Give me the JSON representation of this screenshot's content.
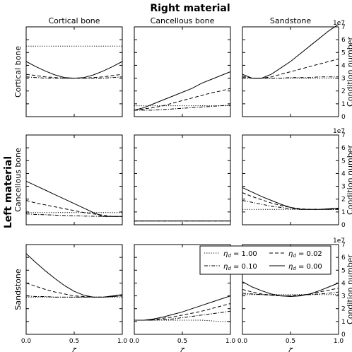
{
  "figure": {
    "suptitle": "Right material",
    "row_group_label": "Left material",
    "col_titles": [
      "Cortical bone",
      "Cancellous bone",
      "Sandstone"
    ],
    "row_titles": [
      "Cortical bone",
      "Cancellous bone",
      "Sandstone"
    ],
    "y_right_label": "Condition number",
    "y_offset_label": "1e7",
    "x_symbol": "ζ"
  },
  "legend": {
    "placement": "inside bottom row, spanning center and right panels",
    "entries": [
      {
        "symbol": "η",
        "sub": "d",
        "value": " = 1.00",
        "dash": "dotted"
      },
      {
        "symbol": "η",
        "sub": "d",
        "value": " = 0.02",
        "dash": "dashed"
      },
      {
        "symbol": "η",
        "sub": "d",
        "value": " = 0.10",
        "dash": "dashdot"
      },
      {
        "symbol": "η",
        "sub": "d",
        "value": " = 0.00",
        "dash": "solid"
      }
    ]
  },
  "chart_data": {
    "type": "line",
    "xlim": [
      0,
      1
    ],
    "ylim": [
      0,
      7
    ],
    "y_scale_note": "values in units of 1e7",
    "x_tick_labels": [
      "0.0",
      "0.5",
      "1.0"
    ],
    "y_tick_labels": [
      "0",
      "1",
      "2",
      "3",
      "4",
      "5",
      "6",
      "7"
    ],
    "x": [
      0.0,
      0.1,
      0.2,
      0.3,
      0.4,
      0.5,
      0.6,
      0.7,
      0.8,
      0.9,
      1.0
    ],
    "panels": [
      {
        "row": "Cortical bone",
        "col": "Cortical bone",
        "series": [
          {
            "eta": "1.00",
            "values": [
              5.5,
              5.5,
              5.5,
              5.5,
              5.5,
              5.5,
              5.5,
              5.5,
              5.5,
              5.5,
              5.5
            ]
          },
          {
            "eta": "0.02",
            "values": [
              3.3,
              3.2,
              3.1,
              3.05,
              3.0,
              3.0,
              3.0,
              3.05,
              3.1,
              3.2,
              3.3
            ]
          },
          {
            "eta": "0.10",
            "values": [
              3.1,
              3.05,
              3.0,
              3.0,
              3.0,
              3.0,
              3.0,
              3.0,
              3.0,
              3.05,
              3.1
            ]
          },
          {
            "eta": "0.00",
            "values": [
              4.3,
              3.9,
              3.55,
              3.25,
              3.05,
              3.0,
              3.05,
              3.25,
              3.55,
              3.9,
              4.3
            ]
          }
        ]
      },
      {
        "row": "Cortical bone",
        "col": "Cancellous bone",
        "series": [
          {
            "eta": "1.00",
            "values": [
              0.85,
              0.85,
              0.85,
              0.85,
              0.85,
              0.85,
              0.85,
              0.85,
              0.85,
              0.85,
              0.85
            ]
          },
          {
            "eta": "0.02",
            "values": [
              0.5,
              0.6,
              0.7,
              0.85,
              1.05,
              1.25,
              1.45,
              1.65,
              1.85,
              2.0,
              2.2
            ]
          },
          {
            "eta": "0.10",
            "values": [
              0.5,
              0.5,
              0.5,
              0.55,
              0.6,
              0.65,
              0.7,
              0.75,
              0.8,
              0.85,
              0.9
            ]
          },
          {
            "eta": "0.00",
            "values": [
              0.5,
              0.7,
              1.0,
              1.3,
              1.6,
              1.9,
              2.2,
              2.6,
              2.9,
              3.2,
              3.5
            ]
          }
        ]
      },
      {
        "row": "Cortical bone",
        "col": "Sandstone",
        "series": [
          {
            "eta": "1.00",
            "values": [
              3.0,
              3.0,
              3.0,
              3.0,
              3.0,
              3.0,
              3.0,
              3.0,
              3.0,
              3.0,
              3.0
            ]
          },
          {
            "eta": "0.02",
            "values": [
              3.15,
              3.0,
              3.0,
              3.1,
              3.3,
              3.5,
              3.7,
              3.9,
              4.1,
              4.3,
              4.5
            ]
          },
          {
            "eta": "0.10",
            "values": [
              3.05,
              3.0,
              3.0,
              3.0,
              3.0,
              3.05,
              3.05,
              3.05,
              3.1,
              3.1,
              3.1
            ]
          },
          {
            "eta": "0.00",
            "values": [
              3.3,
              3.0,
              3.0,
              3.3,
              3.8,
              4.3,
              4.9,
              5.5,
              6.1,
              6.7,
              7.2
            ]
          }
        ]
      },
      {
        "row": "Cancellous bone",
        "col": "Cortical bone",
        "series": [
          {
            "eta": "1.00",
            "values": [
              0.95,
              0.95,
              0.95,
              0.95,
              0.95,
              0.95,
              0.95,
              0.95,
              0.95,
              0.95,
              0.95
            ]
          },
          {
            "eta": "0.02",
            "values": [
              1.9,
              1.7,
              1.55,
              1.4,
              1.25,
              1.1,
              0.95,
              0.85,
              0.75,
              0.65,
              0.65
            ]
          },
          {
            "eta": "0.10",
            "values": [
              0.85,
              0.8,
              0.78,
              0.75,
              0.72,
              0.7,
              0.68,
              0.66,
              0.65,
              0.65,
              0.65
            ]
          },
          {
            "eta": "0.00",
            "values": [
              3.4,
              3.05,
              2.7,
              2.35,
              2.0,
              1.65,
              1.3,
              0.95,
              0.65,
              0.65,
              0.65
            ]
          }
        ]
      },
      {
        "row": "Cancellous bone",
        "col": "Cancellous bone",
        "series": [
          {
            "eta": "1.00",
            "values": [
              0.3,
              0.3,
              0.3,
              0.3,
              0.3,
              0.3,
              0.3,
              0.3,
              0.3,
              0.3,
              0.3
            ]
          },
          {
            "eta": "0.02",
            "values": [
              0.3,
              0.3,
              0.3,
              0.3,
              0.3,
              0.3,
              0.3,
              0.3,
              0.3,
              0.3,
              0.3
            ]
          },
          {
            "eta": "0.10",
            "values": [
              0.3,
              0.3,
              0.3,
              0.3,
              0.3,
              0.3,
              0.3,
              0.3,
              0.3,
              0.3,
              0.3
            ]
          },
          {
            "eta": "0.00",
            "values": [
              0.3,
              0.3,
              0.3,
              0.3,
              0.3,
              0.3,
              0.3,
              0.3,
              0.3,
              0.3,
              0.3
            ]
          }
        ]
      },
      {
        "row": "Cancellous bone",
        "col": "Sandstone",
        "series": [
          {
            "eta": "1.00",
            "values": [
              1.2,
              1.2,
              1.2,
              1.2,
              1.2,
              1.2,
              1.2,
              1.2,
              1.2,
              1.2,
              1.2
            ]
          },
          {
            "eta": "0.02",
            "values": [
              2.5,
              2.2,
              1.95,
              1.7,
              1.5,
              1.35,
              1.25,
              1.2,
              1.2,
              1.2,
              1.25
            ]
          },
          {
            "eta": "0.10",
            "values": [
              1.9,
              1.75,
              1.6,
              1.45,
              1.35,
              1.25,
              1.2,
              1.2,
              1.2,
              1.2,
              1.2
            ]
          },
          {
            "eta": "0.00",
            "values": [
              2.9,
              2.55,
              2.2,
              1.9,
              1.6,
              1.35,
              1.2,
              1.2,
              1.2,
              1.25,
              1.3
            ]
          }
        ]
      },
      {
        "row": "Sandstone",
        "col": "Cortical bone",
        "series": [
          {
            "eta": "1.00",
            "values": [
              2.9,
              2.9,
              2.9,
              2.9,
              2.9,
              2.9,
              2.9,
              2.9,
              2.9,
              2.9,
              2.9
            ]
          },
          {
            "eta": "0.02",
            "values": [
              4.0,
              3.75,
              3.5,
              3.3,
              3.15,
              3.0,
              2.95,
              2.9,
              2.9,
              2.95,
              3.0
            ]
          },
          {
            "eta": "0.10",
            "values": [
              3.0,
              2.95,
              2.95,
              2.9,
              2.9,
              2.9,
              2.9,
              2.9,
              2.9,
              2.95,
              3.0
            ]
          },
          {
            "eta": "0.00",
            "values": [
              6.3,
              5.6,
              4.95,
              4.35,
              3.8,
              3.35,
              3.05,
              2.9,
              2.9,
              3.0,
              3.1
            ]
          }
        ]
      },
      {
        "row": "Sandstone",
        "col": "Cancellous bone",
        "series": [
          {
            "eta": "1.00",
            "values": [
              1.1,
              1.1,
              1.1,
              1.1,
              1.1,
              1.1,
              1.1,
              1.1,
              1.05,
              1.0,
              1.0
            ]
          },
          {
            "eta": "0.02",
            "values": [
              1.1,
              1.1,
              1.15,
              1.25,
              1.35,
              1.5,
              1.65,
              1.8,
              2.0,
              2.2,
              2.4
            ]
          },
          {
            "eta": "0.10",
            "values": [
              1.1,
              1.1,
              1.1,
              1.15,
              1.2,
              1.3,
              1.4,
              1.5,
              1.6,
              1.7,
              1.8
            ]
          },
          {
            "eta": "0.00",
            "values": [
              1.1,
              1.1,
              1.2,
              1.35,
              1.55,
              1.75,
              2.0,
              2.25,
              2.5,
              2.75,
              3.0
            ]
          }
        ]
      },
      {
        "row": "Sandstone",
        "col": "Sandstone",
        "series": [
          {
            "eta": "1.00",
            "values": [
              3.1,
              3.1,
              3.1,
              3.1,
              3.1,
              3.1,
              3.1,
              3.1,
              3.1,
              3.1,
              3.1
            ]
          },
          {
            "eta": "0.02",
            "values": [
              3.5,
              3.3,
              3.15,
              3.05,
              3.0,
              3.0,
              3.05,
              3.15,
              3.3,
              3.45,
              3.6
            ]
          },
          {
            "eta": "0.10",
            "values": [
              3.2,
              3.15,
              3.1,
              3.05,
              3.0,
              3.0,
              3.05,
              3.1,
              3.15,
              3.2,
              3.3
            ]
          },
          {
            "eta": "0.00",
            "values": [
              4.1,
              3.7,
              3.4,
              3.15,
              3.0,
              2.95,
              3.0,
              3.15,
              3.4,
              3.7,
              4.0
            ]
          }
        ]
      }
    ]
  }
}
